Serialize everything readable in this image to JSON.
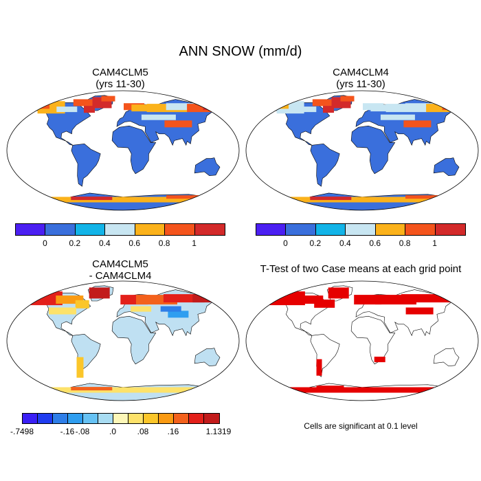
{
  "main_title": "ANN SNOW (mm/d)",
  "panels": [
    {
      "title_line1": "CAM4CLM5",
      "title_line2": "(yrs 11-30)"
    },
    {
      "title_line1": "CAM4CLM4",
      "title_line2": "(yrs 11-30)"
    },
    {
      "title_line1": "CAM4CLM5",
      "title_line2": "- CAM4CLM4"
    },
    {
      "title_line1": "T-Test of two Case means at each grid point",
      "title_line2": ""
    }
  ],
  "colorbar_abs": {
    "colors": [
      "#4b1ff2",
      "#3a6fdc",
      "#12b4e8",
      "#c8e6f2",
      "#fbb21b",
      "#f4541c",
      "#d32a2a"
    ],
    "labels": [
      "0",
      "0.2",
      "0.4",
      "0.6",
      "0.8",
      "1"
    ]
  },
  "colorbar_diff": {
    "colors": [
      "#3a1ff5",
      "#1f3cf0",
      "#2e7ee8",
      "#2f9ef0",
      "#66c2f4",
      "#a8dcf2",
      "#fdf7b8",
      "#fde26a",
      "#fbc62a",
      "#fa9a12",
      "#f3611c",
      "#e3201a",
      "#c21b1b"
    ],
    "labels": [
      "-.7498",
      "-.16",
      "-.08",
      ".0",
      ".08",
      ".16",
      "1.1319"
    ]
  },
  "significance_note": "Cells are significant at 0.1 level",
  "colors": {
    "ocean": "#ffffff",
    "land_abs": "#3a6fdc",
    "land_diff": "#bfe0f2",
    "sig": "#e60000",
    "outline": "#000000"
  }
}
